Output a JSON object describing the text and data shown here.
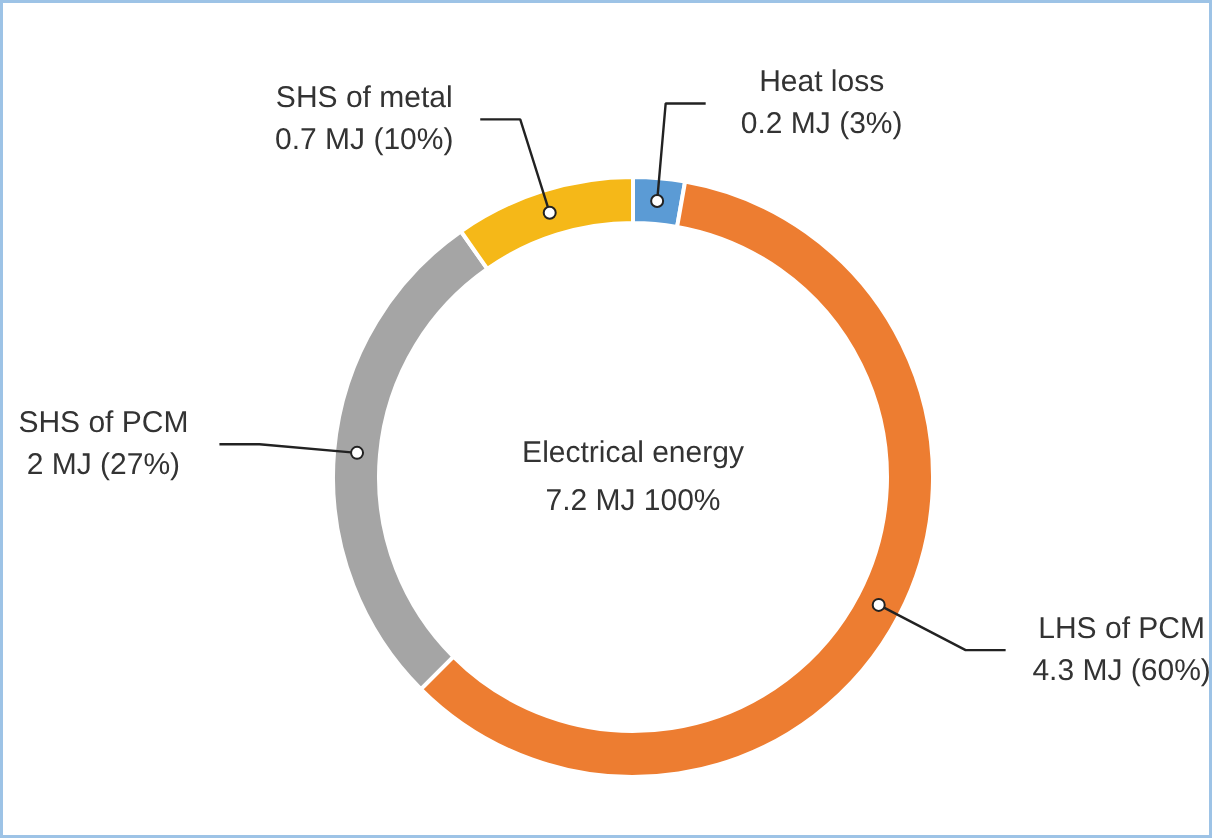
{
  "chart_data": {
    "type": "donut",
    "categories": [
      "Heat loss",
      "LHS of PCM",
      "SHS of PCM",
      "SHS of metal"
    ],
    "values": [
      0.2,
      4.3,
      2,
      0.7
    ],
    "value_labels": [
      "0.2 MJ (3%)",
      "4.3 MJ (60%)",
      "2 MJ (27%)",
      "0.7 MJ (10%)"
    ],
    "colors": [
      "#5b9bd5",
      "#ed7d31",
      "#a5a5a5",
      "#f5b818"
    ],
    "annotations": [
      "Electrical energy",
      "7.2 MJ 100%"
    ]
  }
}
